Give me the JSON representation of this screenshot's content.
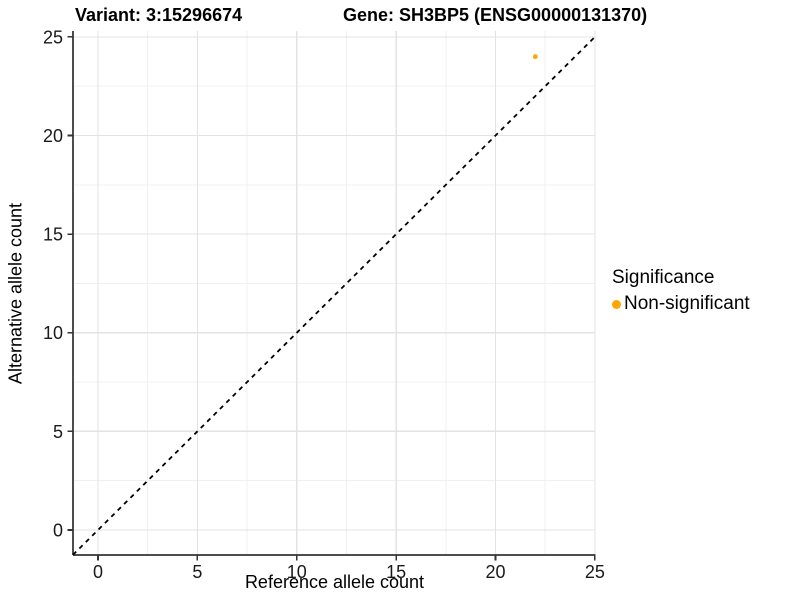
{
  "header": {
    "title_left": "Variant: 3:15296674",
    "title_right": "Gene: SH3BP5 (ENSG00000131370)"
  },
  "chart_data": {
    "type": "scatter",
    "xlabel": "Reference allele count",
    "ylabel": "Alternative allele count",
    "xlim": [
      -1.26,
      25.03
    ],
    "ylim": [
      -1.27,
      25.3
    ],
    "xticks": [
      0,
      5,
      10,
      15,
      20,
      25
    ],
    "yticks": [
      0,
      5,
      10,
      15,
      20,
      25
    ],
    "xticks_minor": [
      2.5,
      7.5,
      12.5,
      17.5,
      22.5
    ],
    "yticks_minor": [
      2.5,
      7.5,
      12.5,
      17.5,
      22.5
    ],
    "grid": "major+minor",
    "identity_line": {
      "slope": 1,
      "intercept": 0,
      "style": "dashed",
      "color": "#000000"
    },
    "points": [
      {
        "x": 22,
        "y": 24,
        "series": "Non-significant"
      }
    ],
    "legend": {
      "title": "Significance",
      "position": "right",
      "items": [
        {
          "label": "Non-significant",
          "color": "#FFA500"
        }
      ]
    },
    "colors": {
      "point": "#FFA500",
      "grid_major": "#E3E3E3",
      "grid_minor": "#F0F0F0",
      "axis_line": "#4D4D4D",
      "tick_mark": "#333333",
      "tick_label": "#1A1A1A"
    }
  }
}
